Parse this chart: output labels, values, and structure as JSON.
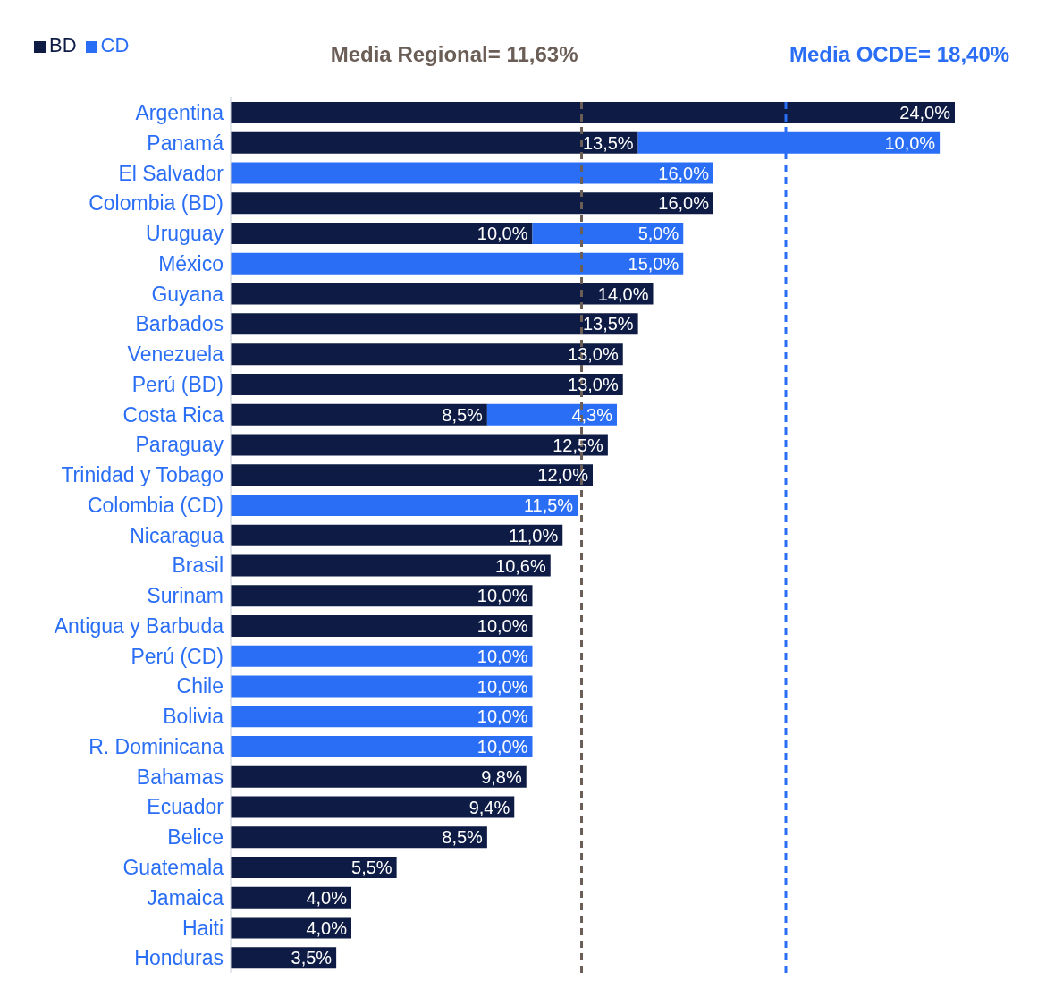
{
  "chart_data": {
    "type": "bar",
    "orientation": "horizontal",
    "stacked": true,
    "legend": "top left",
    "categories": [
      "Argentina",
      "Panamá",
      "El Salvador",
      "Colombia (BD)",
      "Uruguay",
      "México",
      "Guyana",
      "Barbados",
      "Venezuela",
      "Perú (BD)",
      "Costa Rica",
      "Paraguay",
      "Trinidad y Tobago",
      "Colombia (CD)",
      "Nicaragua",
      "Brasil",
      "Surinam",
      "Antigua y Barbuda",
      "Perú (CD)",
      "Chile",
      "Bolivia",
      "R. Dominicana",
      "Bahamas",
      "Ecuador",
      "Belice",
      "Guatemala",
      "Jamaica",
      "Haiti",
      "Honduras"
    ],
    "series": [
      {
        "name": "BD",
        "color": "#0d1b45",
        "values": [
          24.0,
          13.5,
          null,
          16.0,
          10.0,
          null,
          14.0,
          13.5,
          13.0,
          13.0,
          8.5,
          12.5,
          12.0,
          null,
          11.0,
          10.6,
          10.0,
          10.0,
          null,
          null,
          null,
          null,
          9.8,
          9.4,
          8.5,
          5.5,
          4.0,
          4.0,
          3.5
        ],
        "value_labels": [
          "24,0%",
          "13,5%",
          null,
          "16,0%",
          "10,0%",
          null,
          "14,0%",
          "13,5%",
          "13,0%",
          "13,0%",
          "8,5%",
          "12,5%",
          "12,0%",
          null,
          "11,0%",
          "10,6%",
          "10,0%",
          "10,0%",
          null,
          null,
          null,
          null,
          "9,8%",
          "9,4%",
          "8,5%",
          "5,5%",
          "4,0%",
          "4,0%",
          "3,5%"
        ]
      },
      {
        "name": "CD",
        "color": "#2a6ef5",
        "values": [
          null,
          10.0,
          16.0,
          null,
          5.0,
          15.0,
          null,
          null,
          null,
          null,
          4.3,
          null,
          null,
          11.5,
          null,
          null,
          null,
          null,
          10.0,
          10.0,
          10.0,
          10.0,
          null,
          null,
          null,
          null,
          null,
          null,
          null
        ],
        "value_labels": [
          null,
          "10,0%",
          "16,0%",
          null,
          "5,0%",
          "15,0%",
          null,
          null,
          null,
          null,
          "4,3%",
          null,
          null,
          "11,5%",
          null,
          null,
          null,
          null,
          "10,0%",
          "10,0%",
          "10,0%",
          "10,0%",
          null,
          null,
          null,
          null,
          null,
          null,
          null
        ]
      }
    ],
    "ref_lines": [
      {
        "axis": "x",
        "value": 11.63,
        "label": "Media Regional= 11,63%",
        "color": "#6b5e57",
        "line_style": "dashed"
      },
      {
        "axis": "x",
        "value": 18.4,
        "label": "Media OCDE= 18,40%",
        "color": "#2a6ef5",
        "line_style": "dashed"
      }
    ]
  }
}
